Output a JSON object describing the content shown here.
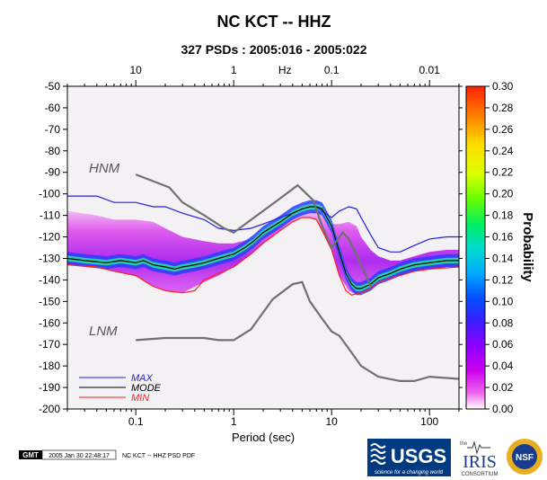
{
  "title": "NC KCT -- HHZ",
  "subtitle": "327 PSDs : 2005:016 - 2005:022",
  "footer": {
    "gmt_badge": "GMT",
    "timestamp": "2005 Jan 30 22:48:17",
    "caption": "NC KCT -- HHZ PSD PDF",
    "logos": {
      "usgs": "USGS",
      "usgs_tagline": "science for a changing world",
      "iris_prefix": "the",
      "iris": "IRIS",
      "iris_sub": "CONSORTIUM",
      "nsf": "NSF"
    }
  },
  "colors": {
    "max_line": "#2020e0",
    "mode_line": "#000000",
    "min_line": "#ff2020",
    "noise_model": "#707070",
    "background_prob": "#f4f1f4"
  },
  "chart_data": {
    "type": "heatmap",
    "x_scale": "log",
    "xlabel": "Period (sec)",
    "xlim": [
      0.02,
      200
    ],
    "x_ticks": [
      0.1,
      1,
      10,
      100
    ],
    "x_tick_labels": [
      "0.1",
      "1",
      "10",
      "100"
    ],
    "top_axis": {
      "label": "Hz",
      "ticks": [
        10,
        1,
        0.1,
        0.01
      ],
      "tick_labels": [
        "10",
        "1",
        "0.1",
        "0.01"
      ]
    },
    "ylabel": "",
    "ylim": [
      -200,
      -50
    ],
    "y_ticks": [
      -50,
      -60,
      -70,
      -80,
      -90,
      -100,
      -110,
      -120,
      -130,
      -140,
      -150,
      -160,
      -170,
      -180,
      -190,
      -200
    ],
    "y_tick_labels": [
      "-50",
      "-60",
      "-70",
      "-80",
      "-90",
      "-100",
      "-110",
      "-120",
      "-130",
      "-140",
      "-150",
      "-160",
      "-170",
      "-180",
      "-190",
      "-200"
    ],
    "colorbar": {
      "label": "Probability",
      "range": [
        0,
        0.3
      ],
      "ticks": [
        "0.30",
        "0.28",
        "0.26",
        "0.24",
        "0.22",
        "0.20",
        "0.18",
        "0.16",
        "0.14",
        "0.12",
        "0.10",
        "0.08",
        "0.06",
        "0.04",
        "0.02",
        "0.00"
      ],
      "colors": [
        "#ffffff",
        "#ee66ee",
        "#cc00ee",
        "#8800ff",
        "#3322ff",
        "#0055ff",
        "#00aaff",
        "#00ddcc",
        "#00ee66",
        "#66ff00",
        "#ddff00",
        "#ffdd00",
        "#ff8800",
        "#ff2200"
      ]
    },
    "noise_model_labels": {
      "high": "HNM",
      "low": "LNM"
    },
    "series": [
      {
        "name": "MAX",
        "style": "line",
        "x": [
          0.02,
          0.04,
          0.06,
          0.1,
          0.15,
          0.2,
          0.3,
          0.5,
          0.7,
          1,
          1.5,
          2,
          3,
          4,
          5,
          6,
          7,
          8,
          10,
          12,
          15,
          18,
          20,
          25,
          30,
          40,
          50,
          70,
          100,
          150,
          200
        ],
        "y": [
          -101,
          -101,
          -104,
          -104,
          -106,
          -106,
          -109,
          -112,
          -116,
          -117,
          -116,
          -114,
          -111,
          -109,
          -107,
          -106,
          -106,
          -108,
          -111,
          -108,
          -106,
          -107,
          -111,
          -119,
          -125,
          -127,
          -127,
          -124,
          -121,
          -120,
          -120
        ]
      },
      {
        "name": "MODE",
        "style": "line",
        "x": [
          0.02,
          0.03,
          0.05,
          0.07,
          0.1,
          0.12,
          0.15,
          0.2,
          0.25,
          0.3,
          0.4,
          0.5,
          0.7,
          1,
          1.3,
          1.6,
          2,
          3,
          4,
          5,
          6,
          7,
          8,
          10,
          12,
          14,
          16,
          18,
          20,
          25,
          30,
          40,
          50,
          70,
          100,
          150,
          200
        ],
        "y": [
          -130,
          -131,
          -132,
          -131,
          -132,
          -131,
          -133,
          -134,
          -135,
          -134,
          -133,
          -132,
          -130,
          -128,
          -125,
          -122,
          -118,
          -113,
          -109,
          -107,
          -106,
          -106,
          -107,
          -115,
          -127,
          -137,
          -142,
          -144,
          -144,
          -142,
          -139,
          -137,
          -135,
          -133,
          -132,
          -131,
          -131
        ]
      },
      {
        "name": "MIN",
        "style": "line",
        "x": [
          0.02,
          0.04,
          0.06,
          0.1,
          0.15,
          0.2,
          0.3,
          0.4,
          0.5,
          0.7,
          1,
          1.5,
          2,
          3,
          4,
          5,
          6,
          7,
          8,
          10,
          12,
          14,
          16,
          20,
          25,
          30,
          50,
          70,
          100,
          200
        ],
        "y": [
          -133,
          -134,
          -136,
          -138,
          -143,
          -145,
          -146,
          -145,
          -140,
          -137,
          -134,
          -128,
          -123,
          -117,
          -113,
          -111,
          -111,
          -112,
          -117,
          -126,
          -138,
          -145,
          -147,
          -146,
          -144,
          -141,
          -138,
          -136,
          -135,
          -134
        ]
      },
      {
        "name": "HNM",
        "style": "noise-model",
        "x": [
          0.1,
          0.22,
          0.3,
          0.5,
          0.8,
          1,
          3,
          4.5,
          6.5,
          8,
          10,
          13,
          15,
          20,
          25
        ],
        "y": [
          -91,
          -97,
          -104,
          -110,
          -116,
          -118,
          -102,
          -96,
          -103,
          -115,
          -125,
          -118,
          -121,
          -133,
          -143
        ]
      },
      {
        "name": "LNM",
        "style": "noise-model",
        "x": [
          0.1,
          0.2,
          0.5,
          0.7,
          1,
          1.5,
          2.5,
          4,
          5,
          6,
          8,
          10,
          12,
          15,
          20,
          30,
          50,
          70,
          100,
          200
        ],
        "y": [
          -168,
          -167,
          -167,
          -168,
          -168,
          -163,
          -149,
          -142,
          -141,
          -150,
          -158,
          -164,
          -166,
          -172,
          -180,
          -185,
          -187,
          -187,
          -185,
          -186
        ]
      }
    ],
    "band": {
      "x": [
        0.02,
        0.04,
        0.06,
        0.1,
        0.15,
        0.2,
        0.3,
        0.5,
        0.7,
        1,
        1.5,
        2,
        3,
        4,
        5,
        6,
        7,
        8,
        10,
        12,
        15,
        18,
        20,
        25,
        30,
        40,
        50,
        70,
        100,
        150,
        200
      ],
      "upper": [
        -108,
        -110,
        -112,
        -112,
        -113,
        -116,
        -120,
        -122,
        -123,
        -123,
        -121,
        -118,
        -113,
        -110,
        -108,
        -107,
        -107,
        -109,
        -114,
        -114,
        -113,
        -115,
        -120,
        -126,
        -129,
        -131,
        -131,
        -129,
        -127,
        -126,
        -126
      ],
      "lower": [
        -133,
        -134,
        -136,
        -138,
        -143,
        -145,
        -146,
        -141,
        -138,
        -134,
        -128,
        -123,
        -117,
        -113,
        -111,
        -111,
        -112,
        -117,
        -126,
        -138,
        -145,
        -147,
        -146,
        -144,
        -141,
        -139,
        -138,
        -136,
        -135,
        -134,
        -134
      ]
    }
  }
}
